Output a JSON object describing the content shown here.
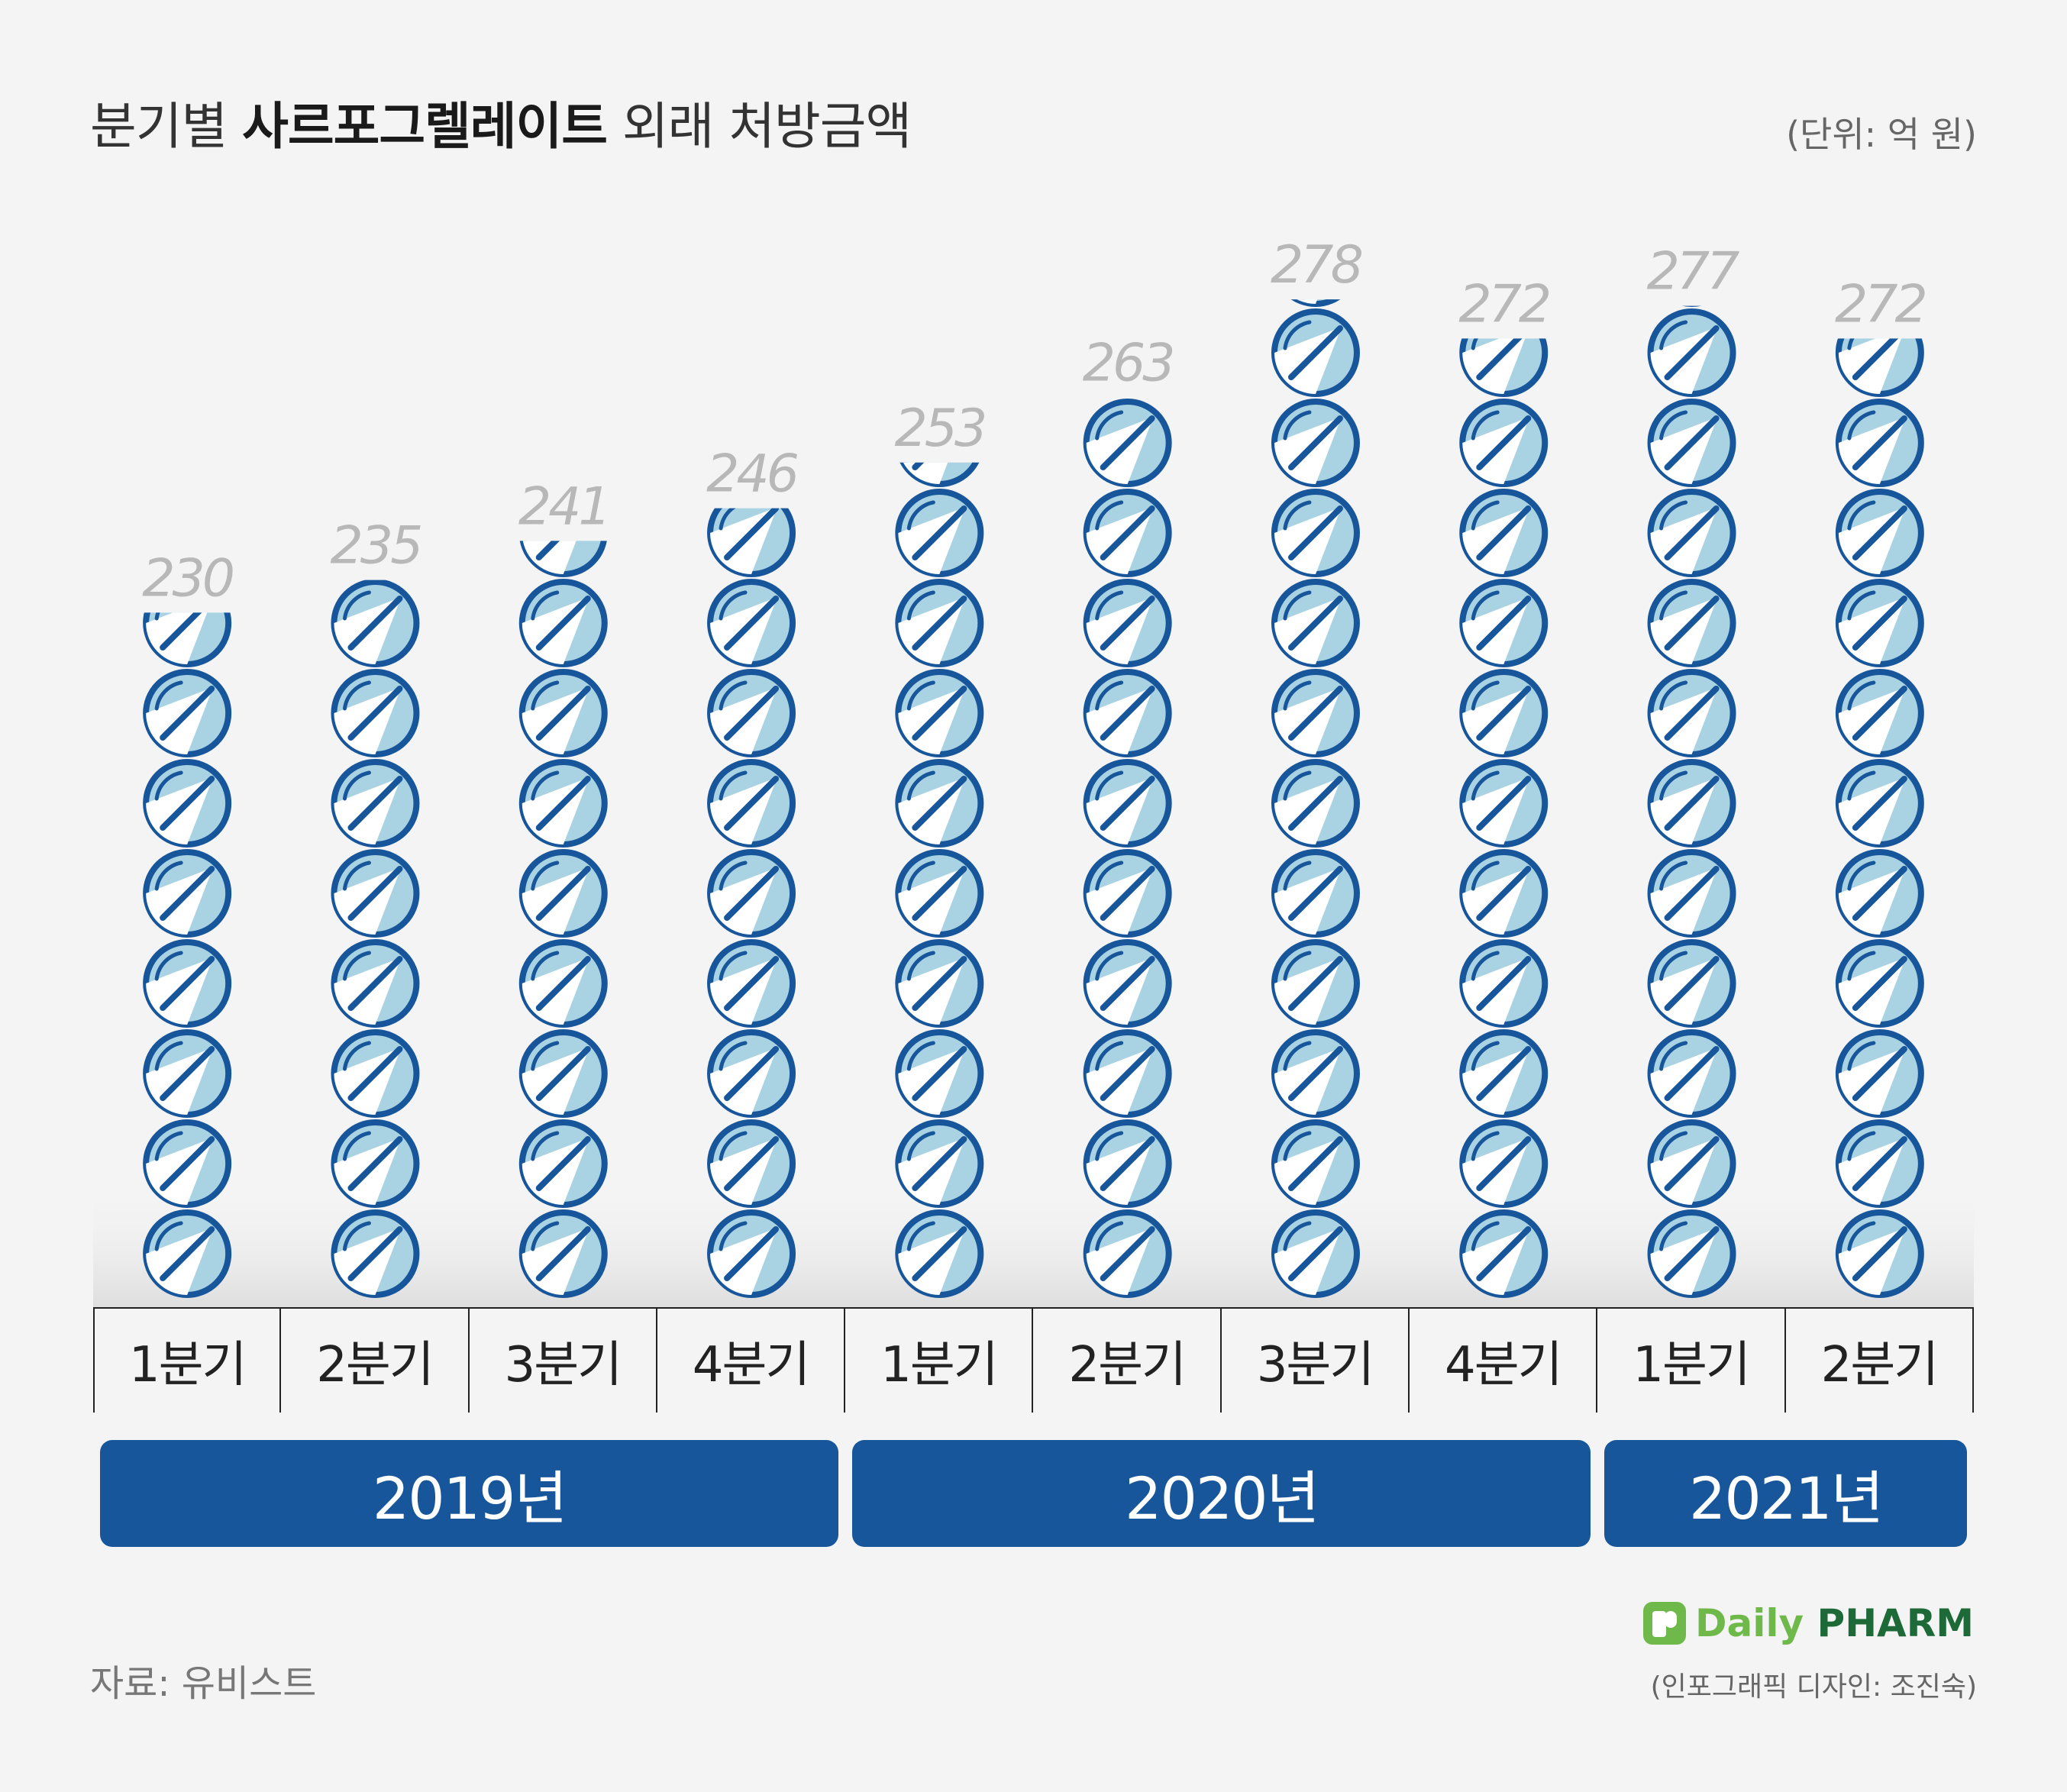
{
  "title": {
    "prefix": "분기별",
    "bold": "사르포그렐레이트",
    "suffix": "외래 처방금액"
  },
  "unit_label": "(단위: 억 원)",
  "source_label": "자료: 유비스트",
  "credit_label": "(인포그래픽 디자인: 조진숙)",
  "logo": {
    "brand_a": "Daily",
    "brand_b": "PHARM"
  },
  "colors": {
    "background": "#f4f4f4",
    "pill_fill": "#a9d3e3",
    "pill_stroke": "#17569b",
    "year_bar": "#17569b",
    "value_label": "#b8b8b8"
  },
  "chart_data": {
    "type": "bar",
    "style": "pictogram (stacked pill icons)",
    "categories": [
      "1분기",
      "2분기",
      "3분기",
      "4분기",
      "1분기",
      "2분기",
      "3분기",
      "4분기",
      "1분기",
      "2분기"
    ],
    "groups": [
      {
        "label": "2019년",
        "span": 4
      },
      {
        "label": "2020년",
        "span": 4
      },
      {
        "label": "2021년",
        "span": 2
      }
    ],
    "values": [
      230,
      235,
      241,
      246,
      253,
      263,
      278,
      272,
      277,
      272
    ],
    "title": "",
    "ylabel": "",
    "xlabel": "",
    "ylim": [
      125,
      280
    ]
  }
}
